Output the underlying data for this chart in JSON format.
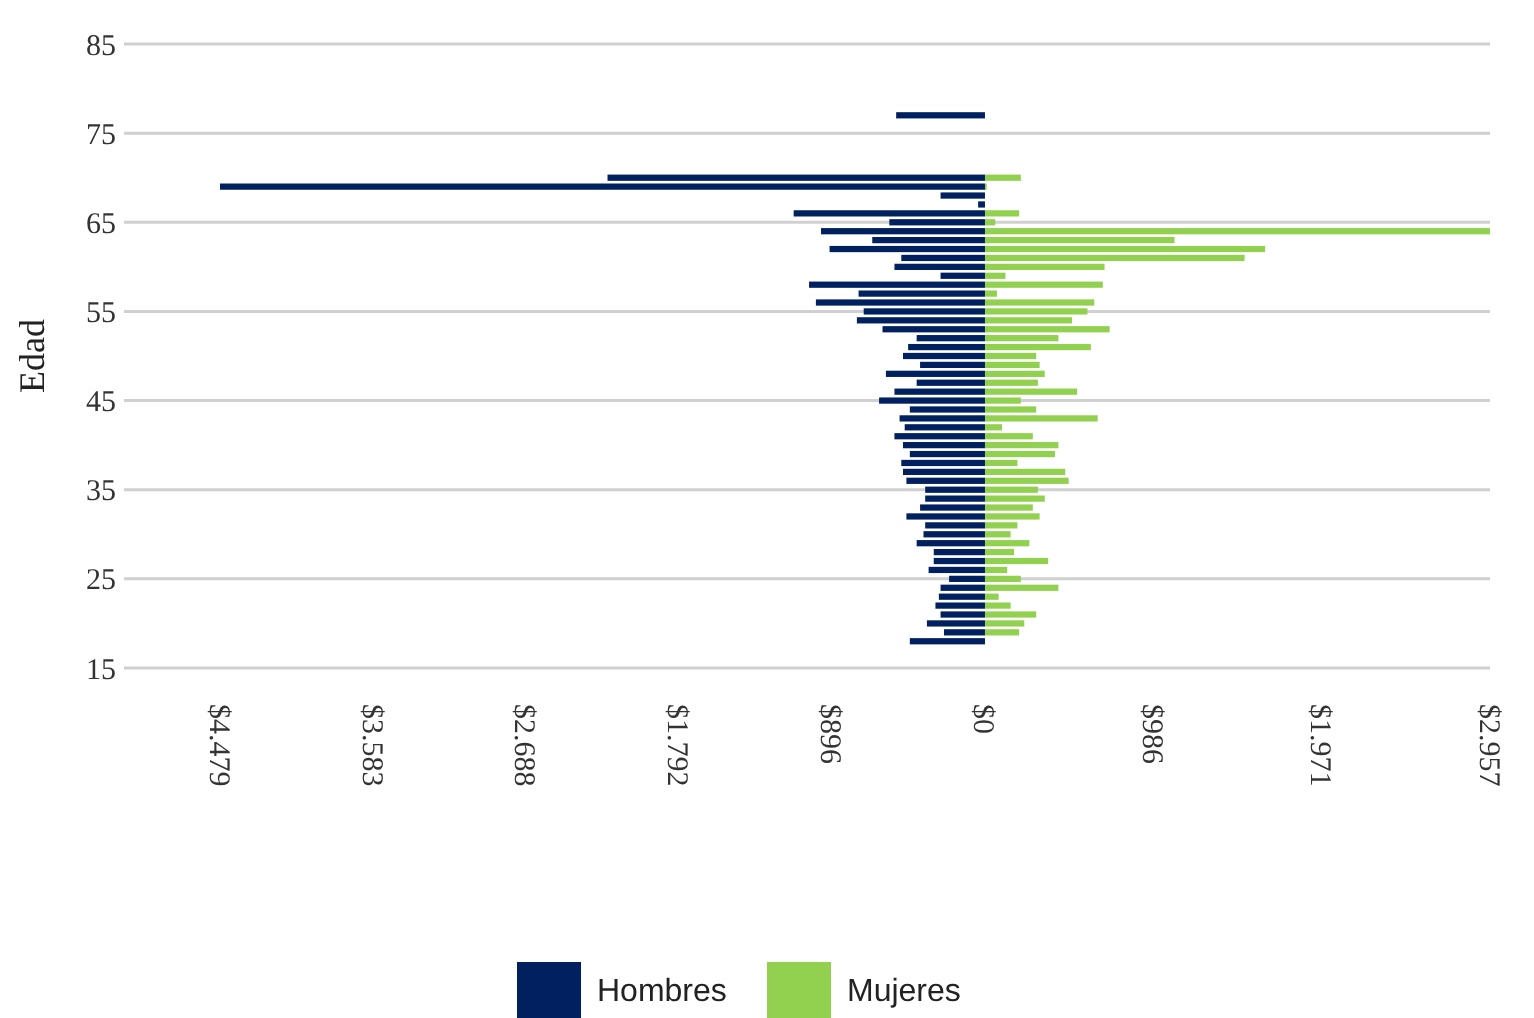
{
  "chart_data": {
    "type": "bar",
    "orientation": "horizontal",
    "ylabel": "Edad",
    "x": [
      18,
      19,
      20,
      21,
      22,
      23,
      24,
      25,
      26,
      27,
      28,
      29,
      30,
      31,
      32,
      33,
      34,
      35,
      36,
      37,
      38,
      39,
      40,
      41,
      42,
      43,
      44,
      45,
      46,
      47,
      48,
      49,
      50,
      51,
      52,
      53,
      54,
      55,
      56,
      57,
      58,
      59,
      60,
      61,
      62,
      63,
      64,
      65,
      66,
      67,
      68,
      69,
      70,
      77
    ],
    "series": [
      {
        "name": "Hombres",
        "color": "#002060",
        "values": [
          -440,
          -240,
          -340,
          -260,
          -290,
          -270,
          -260,
          -210,
          -330,
          -300,
          -300,
          -400,
          -360,
          -350,
          -460,
          -380,
          -350,
          -350,
          -460,
          -480,
          -490,
          -440,
          -480,
          -530,
          -470,
          -500,
          -440,
          -620,
          -530,
          -400,
          -580,
          -380,
          -480,
          -450,
          -400,
          -600,
          -750,
          -710,
          -990,
          -740,
          -1030,
          -260,
          -530,
          -490,
          -910,
          -660,
          -960,
          -560,
          -1120,
          -40,
          -260,
          -4479,
          -2210,
          -520
        ]
      },
      {
        "name": "Mujeres",
        "color": "#92d050",
        "values": [
          0,
          200,
          230,
          300,
          150,
          80,
          430,
          210,
          130,
          370,
          170,
          260,
          150,
          190,
          320,
          280,
          350,
          310,
          490,
          470,
          190,
          410,
          430,
          280,
          100,
          660,
          300,
          210,
          540,
          310,
          350,
          320,
          300,
          620,
          430,
          730,
          510,
          600,
          640,
          70,
          690,
          120,
          700,
          1520,
          1640,
          1110,
          2957,
          60,
          200,
          0,
          0,
          10,
          210,
          null
        ]
      }
    ],
    "xlim": [
      -4479,
      2957
    ],
    "xticks": [
      {
        "value": -4479,
        "label": "$4.479"
      },
      {
        "value": -3583,
        "label": "$3.583"
      },
      {
        "value": -2688,
        "label": "$2.688"
      },
      {
        "value": -1792,
        "label": "$1.792"
      },
      {
        "value": -896,
        "label": "$896"
      },
      {
        "value": 0,
        "label": "$0"
      },
      {
        "value": 986,
        "label": "$986"
      },
      {
        "value": 1971,
        "label": "$1.971"
      },
      {
        "value": 2957,
        "label": "$2.957"
      }
    ],
    "ylim": [
      15,
      85
    ],
    "yticks": [
      15,
      25,
      35,
      45,
      55,
      65,
      75,
      85
    ],
    "stacked": true,
    "grid": "y",
    "legend": "bottom"
  }
}
